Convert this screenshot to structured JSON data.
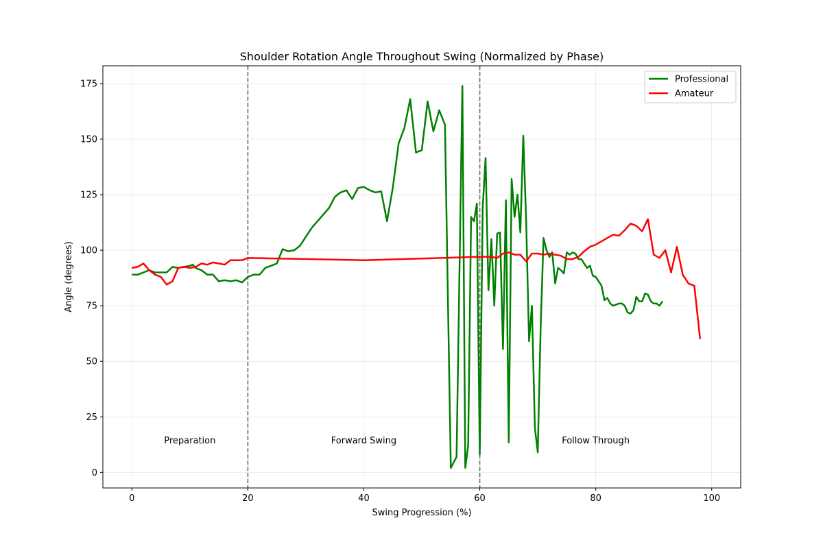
{
  "chart_data": {
    "type": "line",
    "title": "Shoulder Rotation Angle Throughout Swing (Normalized by Phase)",
    "xlabel": "Swing Progression (%)",
    "ylabel": "Angle (degrees)",
    "xlim": [
      -5,
      105
    ],
    "ylim": [
      -7,
      183
    ],
    "xticks": [
      0,
      20,
      40,
      60,
      80,
      100
    ],
    "yticks": [
      0,
      25,
      50,
      75,
      100,
      125,
      150,
      175
    ],
    "grid": true,
    "legend_position": "top-right",
    "phase_boundaries": [
      20,
      60
    ],
    "phase_labels": [
      {
        "label": "Preparation",
        "x": 10,
        "y": 13
      },
      {
        "label": "Forward Swing",
        "x": 40,
        "y": 13
      },
      {
        "label": "Follow Through",
        "x": 80,
        "y": 13
      }
    ],
    "series": [
      {
        "name": "Professional",
        "color": "#008000",
        "points": [
          [
            0,
            89
          ],
          [
            1,
            89
          ],
          [
            2,
            90
          ],
          [
            3,
            91
          ],
          [
            4,
            90
          ],
          [
            5,
            90
          ],
          [
            6,
            90
          ],
          [
            7,
            92.5
          ],
          [
            8,
            92
          ],
          [
            9,
            92.5
          ],
          [
            10,
            93
          ],
          [
            10.5,
            93.5
          ],
          [
            11,
            92
          ],
          [
            12,
            91
          ],
          [
            13,
            89
          ],
          [
            14,
            89
          ],
          [
            15,
            86
          ],
          [
            16,
            86.5
          ],
          [
            17,
            86
          ],
          [
            18,
            86.5
          ],
          [
            19,
            85.5
          ],
          [
            20,
            88
          ],
          [
            21,
            89
          ],
          [
            22,
            89
          ],
          [
            23,
            92
          ],
          [
            24,
            93
          ],
          [
            25,
            94
          ],
          [
            26,
            100.5
          ],
          [
            27,
            99.5
          ],
          [
            28,
            100
          ],
          [
            29,
            102
          ],
          [
            30,
            106
          ],
          [
            31,
            110
          ],
          [
            32,
            113
          ],
          [
            33,
            116
          ],
          [
            34,
            119
          ],
          [
            35,
            124
          ],
          [
            36,
            126
          ],
          [
            37,
            127
          ],
          [
            38,
            123
          ],
          [
            39,
            128
          ],
          [
            40,
            128.5
          ],
          [
            41,
            127
          ],
          [
            42,
            126
          ],
          [
            43,
            126.5
          ],
          [
            44,
            113
          ],
          [
            45,
            128
          ],
          [
            46,
            148
          ],
          [
            47,
            155
          ],
          [
            48,
            168
          ],
          [
            49,
            144
          ],
          [
            50,
            145
          ],
          [
            51,
            167
          ],
          [
            52,
            153.5
          ],
          [
            53,
            163
          ],
          [
            54,
            156.5
          ],
          [
            55,
            2
          ],
          [
            56,
            7
          ],
          [
            57,
            174
          ],
          [
            57.5,
            2
          ],
          [
            58,
            12
          ],
          [
            58.5,
            115
          ],
          [
            59,
            113
          ],
          [
            59.5,
            121
          ],
          [
            60,
            8
          ],
          [
            60.5,
            119
          ],
          [
            61,
            141.5
          ],
          [
            61.5,
            82
          ],
          [
            62,
            105
          ],
          [
            62.5,
            75
          ],
          [
            63,
            107.5
          ],
          [
            63.5,
            108
          ],
          [
            64,
            55.5
          ],
          [
            64.5,
            122.5
          ],
          [
            65,
            13.5
          ],
          [
            65.5,
            132
          ],
          [
            66,
            115
          ],
          [
            66.5,
            125
          ],
          [
            67,
            108
          ],
          [
            67.5,
            151.5
          ],
          [
            68,
            113
          ],
          [
            68.5,
            59
          ],
          [
            69,
            75
          ],
          [
            69.5,
            20
          ],
          [
            70,
            9
          ],
          [
            70.5,
            65
          ],
          [
            71,
            105.5
          ],
          [
            71.5,
            100
          ],
          [
            72,
            97
          ],
          [
            72.5,
            99
          ],
          [
            73,
            85
          ],
          [
            73.5,
            92
          ],
          [
            74,
            91
          ],
          [
            74.5,
            89.5
          ],
          [
            75,
            99
          ],
          [
            75.5,
            98
          ],
          [
            76,
            99
          ],
          [
            76.5,
            98.5
          ],
          [
            77,
            96
          ],
          [
            77.5,
            96
          ],
          [
            78,
            94
          ],
          [
            78.5,
            92
          ],
          [
            79,
            93
          ],
          [
            79.5,
            88.5
          ],
          [
            80,
            88
          ],
          [
            80.5,
            86
          ],
          [
            81,
            84
          ],
          [
            81.5,
            77.5
          ],
          [
            82,
            78.5
          ],
          [
            82.5,
            76
          ],
          [
            83,
            75
          ],
          [
            83.5,
            75.5
          ],
          [
            84,
            76
          ],
          [
            84.5,
            76
          ],
          [
            85,
            75
          ],
          [
            85.5,
            72
          ],
          [
            86,
            71.5
          ],
          [
            86.5,
            73
          ],
          [
            87,
            79
          ],
          [
            87.5,
            77
          ],
          [
            88,
            77
          ],
          [
            88.5,
            80.5
          ],
          [
            89,
            80
          ],
          [
            89.5,
            77
          ],
          [
            90,
            76
          ],
          [
            90.5,
            76
          ],
          [
            91,
            75
          ],
          [
            91.5,
            77
          ]
        ]
      },
      {
        "name": "Amateur",
        "color": "#ff0000",
        "points": [
          [
            0,
            92
          ],
          [
            1,
            92.5
          ],
          [
            2,
            94
          ],
          [
            3,
            91
          ],
          [
            4,
            89
          ],
          [
            5,
            88
          ],
          [
            6,
            84.5
          ],
          [
            7,
            86
          ],
          [
            8,
            92
          ],
          [
            9,
            92.5
          ],
          [
            10,
            92
          ],
          [
            11,
            92.5
          ],
          [
            12,
            94
          ],
          [
            13,
            93.5
          ],
          [
            14,
            94.5
          ],
          [
            15,
            94
          ],
          [
            16,
            93.5
          ],
          [
            17,
            95.5
          ],
          [
            18,
            95.5
          ],
          [
            19,
            95.5
          ],
          [
            20,
            96.5
          ],
          [
            40,
            95.5
          ],
          [
            60,
            97
          ],
          [
            62,
            97
          ],
          [
            63,
            96.5
          ],
          [
            64,
            98.5
          ],
          [
            65,
            99
          ],
          [
            66,
            98
          ],
          [
            67,
            98
          ],
          [
            68,
            95
          ],
          [
            69,
            98.5
          ],
          [
            70,
            98.5
          ],
          [
            71,
            98
          ],
          [
            72,
            98.5
          ],
          [
            73,
            98
          ],
          [
            74,
            97.5
          ],
          [
            75,
            96
          ],
          [
            76,
            96
          ],
          [
            77,
            97
          ],
          [
            78,
            99.5
          ],
          [
            79,
            101.5
          ],
          [
            80,
            102.5
          ],
          [
            81,
            104
          ],
          [
            82,
            105.5
          ],
          [
            83,
            107
          ],
          [
            84,
            106.5
          ],
          [
            85,
            109
          ],
          [
            86,
            112
          ],
          [
            87,
            111
          ],
          [
            88,
            108.5
          ],
          [
            89,
            114
          ],
          [
            90,
            98
          ],
          [
            91,
            96.5
          ],
          [
            92,
            100
          ],
          [
            93,
            90
          ],
          [
            94,
            101.5
          ],
          [
            95,
            89
          ],
          [
            96,
            85
          ],
          [
            97,
            84
          ],
          [
            98,
            60
          ]
        ]
      }
    ]
  }
}
